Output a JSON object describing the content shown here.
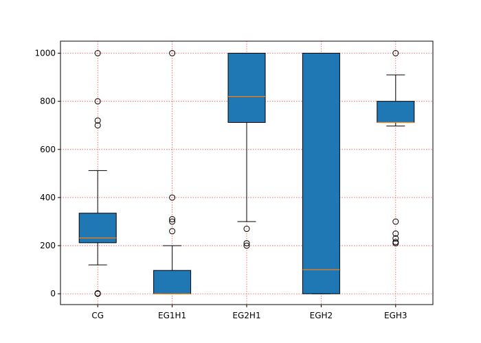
{
  "chart_data": {
    "type": "boxplot",
    "title": "",
    "xlabel": "",
    "ylabel": "",
    "ylim": [
      -45,
      1050
    ],
    "yticks": [
      0,
      200,
      400,
      600,
      800,
      1000
    ],
    "grid": true,
    "colors": {
      "box_fill": "#1f77b4",
      "median": "#ff7f0e",
      "grid": "#ff0000",
      "edge": "#000000"
    },
    "categories": [
      "CG",
      "EG1H1",
      "EG2H1",
      "EGH2",
      "EGH3"
    ],
    "boxes": [
      {
        "label": "CG",
        "whisker_low": 120,
        "q1": 212,
        "median": 232,
        "q3": 335,
        "whisker_high": 512,
        "outliers": [
          0,
          2,
          700,
          720,
          800,
          1000
        ]
      },
      {
        "label": "EG1H1",
        "whisker_low": 0,
        "q1": 0,
        "median": 0,
        "q3": 97,
        "whisker_high": 200,
        "outliers": [
          260,
          300,
          310,
          400,
          1000
        ]
      },
      {
        "label": "EG2H1",
        "whisker_low": 300,
        "q1": 712,
        "median": 820,
        "q3": 1000,
        "whisker_high": 1000,
        "outliers": [
          200,
          210,
          270
        ]
      },
      {
        "label": "EGH2",
        "whisker_low": 0,
        "q1": 0,
        "median": 100,
        "q3": 1000,
        "whisker_high": 1000,
        "outliers": []
      },
      {
        "label": "EGH3",
        "whisker_low": 697,
        "q1": 712,
        "median": 712,
        "q3": 800,
        "whisker_high": 910,
        "outliers": [
          210,
          215,
          230,
          250,
          300,
          1000
        ]
      }
    ]
  }
}
